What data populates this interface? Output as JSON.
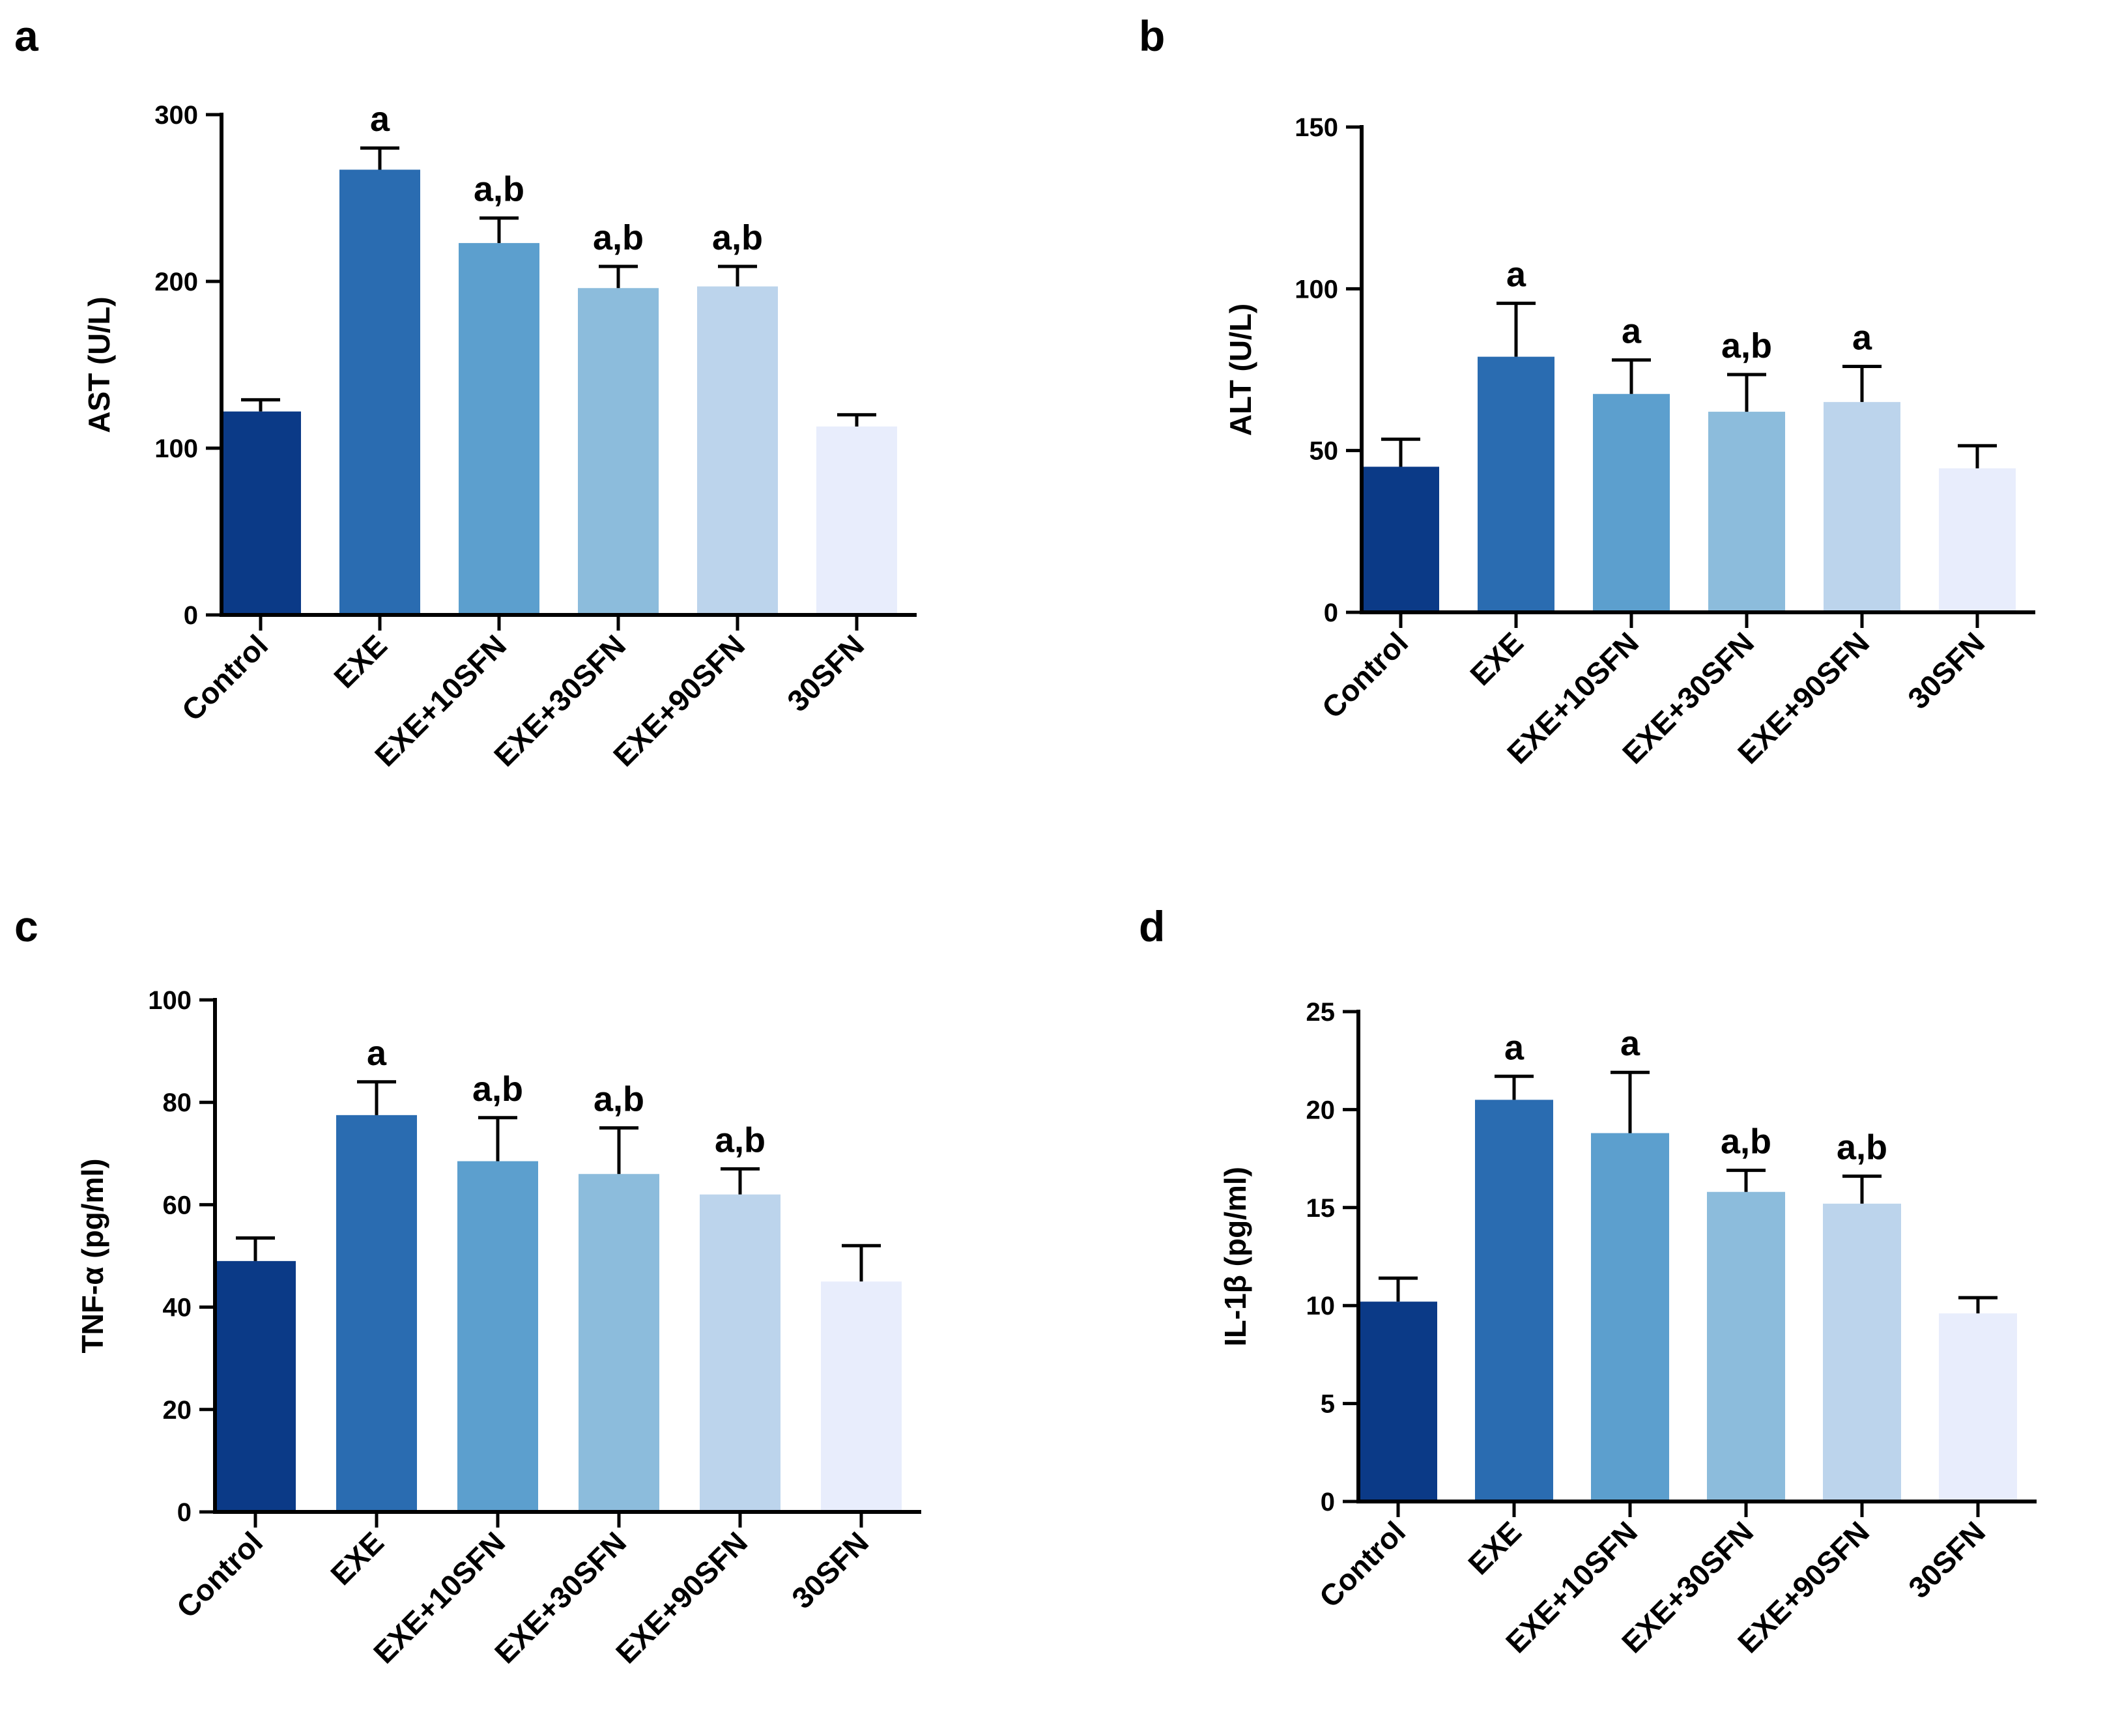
{
  "figure": {
    "panels": [
      "a",
      "b",
      "c",
      "d"
    ]
  },
  "chart_data": [
    {
      "panel": "a",
      "type": "bar",
      "title": "",
      "xlabel": "",
      "ylabel": "AST (U/L)",
      "ylim": [
        0,
        300
      ],
      "yticks": [
        0,
        100,
        200,
        300
      ],
      "grid": false,
      "categories": [
        "Control",
        "EXE",
        "EXE+10SFN",
        "EXE+30SFN",
        "EXE+90SFN",
        "30SFN"
      ],
      "values": [
        122,
        267,
        223,
        196,
        197,
        113
      ],
      "errors": [
        7,
        13,
        15,
        13,
        12,
        7
      ],
      "annotations": [
        "",
        "a",
        "a,b",
        "a,b",
        "a,b",
        ""
      ],
      "colors": [
        "#0b3a87",
        "#2a6cb1",
        "#5c9fce",
        "#8cbcdc",
        "#bcd4ec",
        "#e8edfc"
      ]
    },
    {
      "panel": "b",
      "type": "bar",
      "title": "",
      "xlabel": "",
      "ylabel": "ALT (U/L)",
      "ylim": [
        0,
        150
      ],
      "yticks": [
        0,
        50,
        100,
        150
      ],
      "grid": false,
      "categories": [
        "Control",
        "EXE",
        "EXE+10SFN",
        "EXE+30SFN",
        "EXE+90SFN",
        "30SFN"
      ],
      "values": [
        45,
        79,
        67.5,
        62,
        65,
        44.5
      ],
      "errors": [
        8.5,
        16.5,
        10.5,
        11.5,
        11,
        7
      ],
      "annotations": [
        "",
        "a",
        "a",
        "a,b",
        "a",
        ""
      ],
      "colors": [
        "#0b3a87",
        "#2a6cb1",
        "#5c9fce",
        "#8cbcdc",
        "#bcd4ec",
        "#e8edfc"
      ]
    },
    {
      "panel": "c",
      "type": "bar",
      "title": "",
      "xlabel": "",
      "ylabel": "TNF-α (pg/ml)",
      "ylim": [
        0,
        100
      ],
      "yticks": [
        0,
        20,
        40,
        60,
        80,
        100
      ],
      "grid": false,
      "categories": [
        "Control",
        "EXE",
        "EXE+10SFN",
        "EXE+30SFN",
        "EXE+90SFN",
        "30SFN"
      ],
      "values": [
        49,
        77.5,
        68.5,
        66,
        62,
        45
      ],
      "errors": [
        4.5,
        6.5,
        8.5,
        9,
        5,
        7
      ],
      "annotations": [
        "",
        "a",
        "a,b",
        "a,b",
        "a,b",
        ""
      ],
      "colors": [
        "#0b3a87",
        "#2a6cb1",
        "#5c9fce",
        "#8cbcdc",
        "#bcd4ec",
        "#e8edfc"
      ]
    },
    {
      "panel": "d",
      "type": "bar",
      "title": "",
      "xlabel": "",
      "ylabel": "IL-1β (pg/ml)",
      "ylim": [
        0,
        25
      ],
      "yticks": [
        0,
        5,
        10,
        15,
        20,
        25
      ],
      "grid": false,
      "categories": [
        "Control",
        "EXE",
        "EXE+10SFN",
        "EXE+30SFN",
        "EXE+90SFN",
        "30SFN"
      ],
      "values": [
        10.2,
        20.5,
        18.8,
        15.8,
        15.2,
        9.6
      ],
      "errors": [
        1.2,
        1.2,
        3.1,
        1.1,
        1.4,
        0.8
      ],
      "annotations": [
        "",
        "a",
        "a",
        "a,b",
        "a,b",
        ""
      ],
      "colors": [
        "#0b3a87",
        "#2a6cb1",
        "#5c9fce",
        "#8cbcdc",
        "#bcd4ec",
        "#e8edfc"
      ]
    }
  ]
}
